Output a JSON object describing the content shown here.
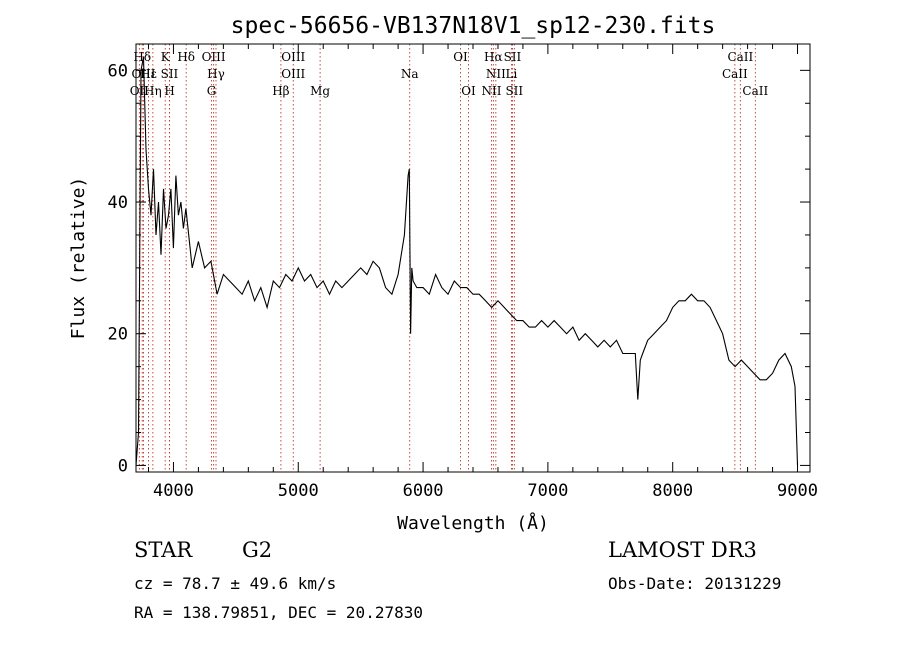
{
  "chart_data": {
    "type": "line",
    "title": "spec-56656-VB137N18V1_sp12-230.fits",
    "xlabel": "Wavelength (Å)",
    "ylabel": "Flux (relative)",
    "xlim": [
      3700,
      9100
    ],
    "ylim": [
      -1,
      64
    ],
    "xticks": [
      4000,
      5000,
      6000,
      7000,
      8000,
      9000
    ],
    "yticks": [
      0,
      20,
      40,
      60
    ],
    "grid": false,
    "series": [
      {
        "name": "flux",
        "x": [
          3700,
          3720,
          3740,
          3760,
          3780,
          3800,
          3820,
          3840,
          3860,
          3880,
          3900,
          3920,
          3940,
          3960,
          3980,
          4000,
          4020,
          4040,
          4060,
          4080,
          4100,
          4150,
          4200,
          4250,
          4300,
          4350,
          4400,
          4450,
          4500,
          4550,
          4600,
          4650,
          4700,
          4750,
          4800,
          4850,
          4900,
          4950,
          5000,
          5050,
          5100,
          5150,
          5200,
          5250,
          5300,
          5350,
          5400,
          5450,
          5500,
          5550,
          5600,
          5650,
          5700,
          5750,
          5800,
          5850,
          5880,
          5890,
          5900,
          5910,
          5920,
          5950,
          6000,
          6050,
          6100,
          6150,
          6200,
          6250,
          6300,
          6350,
          6400,
          6450,
          6500,
          6550,
          6600,
          6650,
          6700,
          6750,
          6800,
          6850,
          6900,
          6950,
          7000,
          7050,
          7100,
          7150,
          7200,
          7250,
          7300,
          7350,
          7400,
          7450,
          7500,
          7550,
          7600,
          7650,
          7700,
          7720,
          7740,
          7760,
          7800,
          7850,
          7900,
          7950,
          8000,
          8050,
          8100,
          8150,
          8200,
          8250,
          8300,
          8350,
          8400,
          8450,
          8500,
          8550,
          8600,
          8650,
          8700,
          8750,
          8800,
          8850,
          8900,
          8950,
          8980,
          9000
        ],
        "y": [
          0,
          5,
          60,
          62,
          48,
          42,
          38,
          45,
          35,
          40,
          32,
          42,
          36,
          38,
          42,
          33,
          44,
          38,
          40,
          36,
          39,
          30,
          34,
          30,
          31,
          26,
          29,
          28,
          27,
          26,
          28,
          25,
          27,
          24,
          28,
          27,
          29,
          28,
          30,
          28,
          29,
          27,
          28,
          26,
          28,
          27,
          28,
          29,
          30,
          29,
          31,
          30,
          27,
          26,
          29,
          35,
          44,
          45,
          20,
          30,
          28,
          27,
          27,
          26,
          29,
          27,
          26,
          28,
          27,
          27,
          26,
          26,
          25,
          24,
          25,
          24,
          23,
          22,
          22,
          21,
          21,
          22,
          21,
          22,
          21,
          20,
          21,
          19,
          20,
          19,
          18,
          19,
          18,
          19,
          17,
          17,
          17,
          10,
          16,
          17,
          19,
          20,
          21,
          22,
          24,
          25,
          25,
          26,
          25,
          25,
          24,
          22,
          20,
          16,
          15,
          16,
          15,
          14,
          13,
          13,
          14,
          16,
          17,
          15,
          12,
          0
        ]
      }
    ],
    "line_markers": [
      {
        "label": "Hδ",
        "x": 3750,
        "row": 1
      },
      {
        "label": "OIII",
        "x": 3760,
        "row": 2
      },
      {
        "label": "OII",
        "x": 3727,
        "row": 3
      },
      {
        "label": "Hε",
        "x": 3800,
        "row": 2
      },
      {
        "label": "Hη",
        "x": 3835,
        "row": 3
      },
      {
        "label": "K",
        "x": 3934,
        "row": 1
      },
      {
        "label": "SII",
        "x": 3968,
        "row": 2
      },
      {
        "label": "H",
        "x": 3969,
        "row": 3
      },
      {
        "label": "Hδ",
        "x": 4102,
        "row": 1
      },
      {
        "label": "OIII",
        "x": 4322,
        "row": 1
      },
      {
        "label": "Hγ",
        "x": 4341,
        "row": 2
      },
      {
        "label": "G",
        "x": 4305,
        "row": 3
      },
      {
        "label": "OIII",
        "x": 4960,
        "row": 1
      },
      {
        "label": "OIII",
        "x": 4960,
        "row": 2
      },
      {
        "label": "Hβ",
        "x": 4861,
        "row": 3
      },
      {
        "label": "Mg",
        "x": 5175,
        "row": 3
      },
      {
        "label": "Na",
        "x": 5893,
        "row": 2
      },
      {
        "label": "OI",
        "x": 6300,
        "row": 1
      },
      {
        "label": "OI",
        "x": 6364,
        "row": 3
      },
      {
        "label": "Hα",
        "x": 6563,
        "row": 1
      },
      {
        "label": "SII",
        "x": 6716,
        "row": 1
      },
      {
        "label": "NII",
        "x": 6583,
        "row": 2
      },
      {
        "label": "Li",
        "x": 6708,
        "row": 2
      },
      {
        "label": "NII",
        "x": 6548,
        "row": 3
      },
      {
        "label": "SII",
        "x": 6731,
        "row": 3
      },
      {
        "label": "CaII",
        "x": 8542,
        "row": 1
      },
      {
        "label": "CaII",
        "x": 8498,
        "row": 2
      },
      {
        "label": "CaII",
        "x": 8662,
        "row": 3
      }
    ]
  },
  "info": {
    "class_label": "STAR",
    "subclass_label": "G2",
    "survey": "LAMOST DR3",
    "cz": "cz = 78.7 ± 49.6 km/s",
    "obs_date": "Obs-Date: 20131229",
    "coords": "RA = 138.79851, DEC =  20.27830"
  }
}
